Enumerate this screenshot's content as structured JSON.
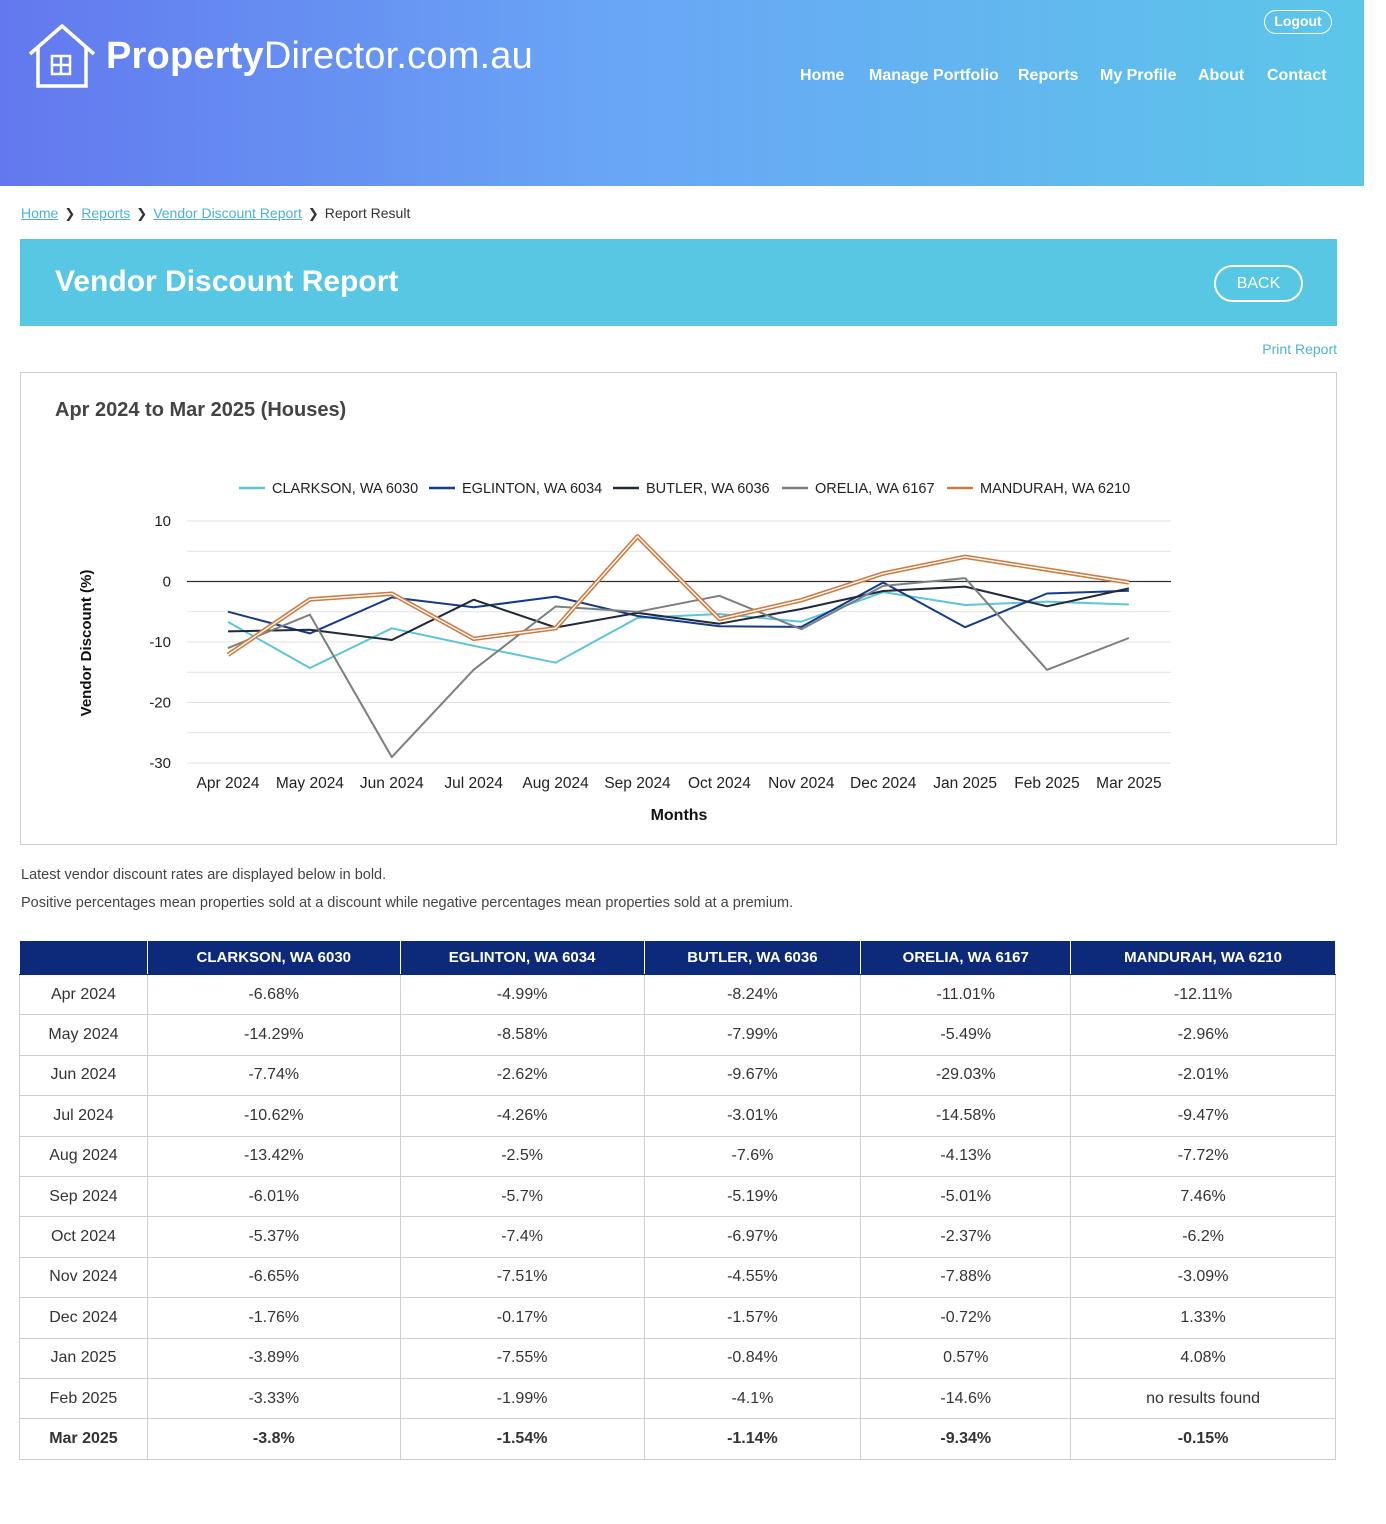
{
  "header": {
    "logo_bold": "Property",
    "logo_rest": "Director.com.au",
    "logout_label": "Logout",
    "nav": [
      "Home",
      "Manage Portfolio",
      "Reports",
      "My Profile",
      "About",
      "Contact"
    ]
  },
  "breadcrumb": {
    "items": [
      "Home",
      "Reports",
      "Vendor Discount Report"
    ],
    "current": "Report Result"
  },
  "page": {
    "title": "Vendor Discount Report",
    "back_label": "BACK",
    "print_label": "Print Report"
  },
  "chart_data": {
    "type": "line",
    "title": "Apr 2024 to Mar 2025 (Houses)",
    "xlabel": "Months",
    "ylabel": "Vendor Discount (%)",
    "ylim": [
      -30,
      10
    ],
    "yticks": [
      "10",
      "0",
      "-10",
      "-20",
      "-30"
    ],
    "grid": true,
    "legend": "top",
    "categories": [
      "Apr 2024",
      "May 2024",
      "Jun 2024",
      "Jul 2024",
      "Aug 2024",
      "Sep 2024",
      "Oct 2024",
      "Nov 2024",
      "Dec 2024",
      "Jan 2025",
      "Feb 2025",
      "Mar 2025"
    ],
    "series": [
      {
        "name": "CLARKSON, WA 6030",
        "color": "#5bc5dc",
        "values": [
          -6.68,
          -14.29,
          -7.74,
          -10.62,
          -13.42,
          -6.01,
          -5.37,
          -6.65,
          -1.76,
          -3.89,
          -3.33,
          -3.8
        ]
      },
      {
        "name": "EGLINTON, WA 6034",
        "color": "#163a8c",
        "values": [
          -4.99,
          -8.58,
          -2.62,
          -4.26,
          -2.5,
          -5.7,
          -7.4,
          -7.51,
          -0.17,
          -7.55,
          -1.99,
          -1.54
        ]
      },
      {
        "name": "BUTLER, WA 6036",
        "color": "#222a3a",
        "values": [
          -8.24,
          -7.99,
          -9.67,
          -3.01,
          -7.6,
          -5.19,
          -6.97,
          -4.55,
          -1.57,
          -0.84,
          -4.1,
          -1.14
        ]
      },
      {
        "name": "ORELIA, WA 6167",
        "color": "#7a8080",
        "values": [
          -11.01,
          -5.49,
          -29.03,
          -14.58,
          -4.13,
          -5.01,
          -2.37,
          -7.88,
          -0.72,
          0.57,
          -14.6,
          -9.34
        ]
      },
      {
        "name": "MANDURAH, WA 6210",
        "color": "#d07a40",
        "values": [
          -12.11,
          -2.96,
          -2.01,
          -9.47,
          -7.72,
          7.46,
          -6.2,
          -3.09,
          1.33,
          4.08,
          null,
          -0.15
        ]
      }
    ]
  },
  "notes": [
    "Latest vendor discount rates are displayed below in bold.",
    "Positive percentages mean properties sold at a discount while negative percentages mean properties sold at a premium."
  ],
  "table": {
    "headers": [
      "",
      "CLARKSON, WA 6030",
      "EGLINTON, WA 6034",
      "BUTLER, WA 6036",
      "ORELIA, WA 6167",
      "MANDURAH, WA 6210"
    ],
    "rows": [
      [
        "Apr 2024",
        "-6.68%",
        "-4.99%",
        "-8.24%",
        "-11.01%",
        "-12.11%"
      ],
      [
        "May 2024",
        "-14.29%",
        "-8.58%",
        "-7.99%",
        "-5.49%",
        "-2.96%"
      ],
      [
        "Jun 2024",
        "-7.74%",
        "-2.62%",
        "-9.67%",
        "-29.03%",
        "-2.01%"
      ],
      [
        "Jul 2024",
        "-10.62%",
        "-4.26%",
        "-3.01%",
        "-14.58%",
        "-9.47%"
      ],
      [
        "Aug 2024",
        "-13.42%",
        "-2.5%",
        "-7.6%",
        "-4.13%",
        "-7.72%"
      ],
      [
        "Sep 2024",
        "-6.01%",
        "-5.7%",
        "-5.19%",
        "-5.01%",
        "7.46%"
      ],
      [
        "Oct 2024",
        "-5.37%",
        "-7.4%",
        "-6.97%",
        "-2.37%",
        "-6.2%"
      ],
      [
        "Nov 2024",
        "-6.65%",
        "-7.51%",
        "-4.55%",
        "-7.88%",
        "-3.09%"
      ],
      [
        "Dec 2024",
        "-1.76%",
        "-0.17%",
        "-1.57%",
        "-0.72%",
        "1.33%"
      ],
      [
        "Jan 2025",
        "-3.89%",
        "-7.55%",
        "-0.84%",
        "0.57%",
        "4.08%"
      ],
      [
        "Feb 2025",
        "-3.33%",
        "-1.99%",
        "-4.1%",
        "-14.6%",
        "no results found"
      ],
      [
        "Mar 2025",
        "-3.8%",
        "-1.54%",
        "-1.14%",
        "-9.34%",
        "-0.15%"
      ]
    ]
  }
}
